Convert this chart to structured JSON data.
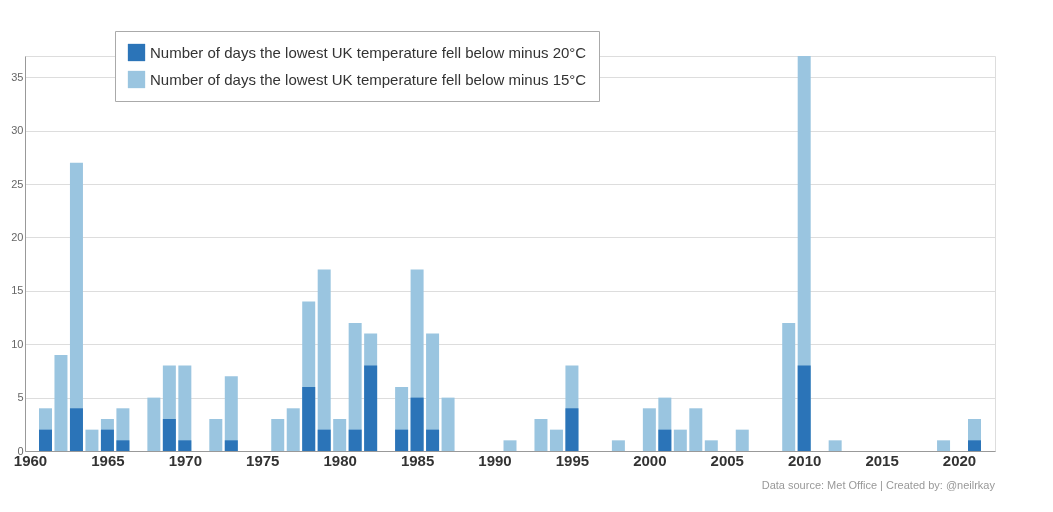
{
  "chart_data": {
    "type": "bar",
    "x": [
      1961,
      1962,
      1963,
      1964,
      1965,
      1966,
      1967,
      1968,
      1969,
      1970,
      1971,
      1972,
      1973,
      1974,
      1975,
      1976,
      1977,
      1978,
      1979,
      1980,
      1981,
      1982,
      1983,
      1984,
      1985,
      1986,
      1987,
      1988,
      1989,
      1990,
      1991,
      1992,
      1993,
      1994,
      1995,
      1996,
      1997,
      1998,
      1999,
      2000,
      2001,
      2002,
      2003,
      2004,
      2005,
      2006,
      2007,
      2008,
      2009,
      2010,
      2011,
      2012,
      2013,
      2014,
      2015,
      2016,
      2017,
      2018,
      2019,
      2020,
      2021
    ],
    "series": [
      {
        "name": "Number of days the lowest UK temperature fell below minus 20°C",
        "color": "#2b74b8",
        "values": [
          2,
          0,
          4,
          0,
          2,
          1,
          0,
          0,
          3,
          1,
          0,
          0,
          1,
          0,
          0,
          0,
          0,
          6,
          2,
          0,
          2,
          8,
          0,
          2,
          5,
          2,
          0,
          0,
          0,
          0,
          0,
          0,
          0,
          0,
          4,
          0,
          0,
          0,
          0,
          0,
          2,
          0,
          0,
          0,
          0,
          0,
          0,
          0,
          0,
          8,
          0,
          0,
          0,
          0,
          0,
          0,
          0,
          0,
          0,
          0,
          1
        ]
      },
      {
        "name": "Number of days the lowest UK temperature fell below minus 15°C",
        "color": "#9ac5e0",
        "values": [
          4,
          9,
          27,
          2,
          3,
          4,
          0,
          5,
          8,
          8,
          0,
          3,
          7,
          0,
          0,
          3,
          4,
          14,
          17,
          3,
          12,
          11,
          0,
          6,
          17,
          11,
          5,
          0,
          0,
          0,
          1,
          0,
          3,
          2,
          8,
          0,
          0,
          1,
          0,
          4,
          5,
          2,
          4,
          1,
          0,
          2,
          0,
          0,
          12,
          37,
          0,
          1,
          0,
          0,
          0,
          0,
          0,
          0,
          1,
          0,
          3
        ]
      }
    ],
    "xlim": [
      1960,
      2022
    ],
    "xticks": [
      1960,
      1965,
      1970,
      1975,
      1980,
      1985,
      1990,
      1995,
      2000,
      2005,
      2010,
      2015,
      2020
    ],
    "ylim": [
      0,
      37
    ],
    "yticks": [
      0,
      5,
      10,
      15,
      20,
      25,
      30,
      35
    ],
    "grid": "y",
    "legend": "top",
    "annotations": [
      "Data source: Met Office  |  Created by: @neilrkay"
    ]
  }
}
